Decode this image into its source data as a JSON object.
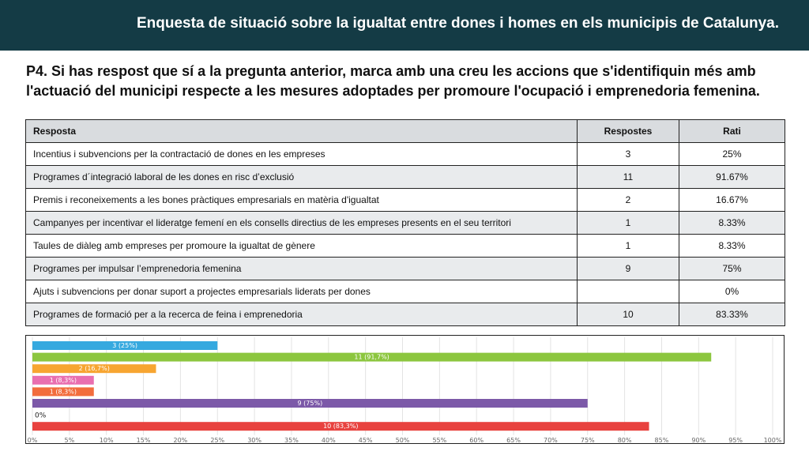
{
  "header": {
    "title": "Enquesta de situació sobre la  igualtat entre dones i homes en els municipis de Catalunya."
  },
  "question": {
    "line1": "P4.  Si has respost que sí a la pregunta anterior, marca amb una creu les accions que s'identifiquin més amb",
    "line2": "l'actuació del municipi respecte a les mesures adoptades per promoure l'ocupació i emprenedoria femenina."
  },
  "table": {
    "headers": [
      "Resposta",
      "Respostes",
      "Rati"
    ],
    "rows": [
      {
        "resposta": "Incentius i subvencions per la contractació de dones en les empreses",
        "respostes": "3",
        "rati": "25%"
      },
      {
        "resposta": "Programes d´integració laboral de les dones en risc d’exclusió",
        "respostes": "11",
        "rati": "91.67%"
      },
      {
        "resposta": "Premis i reconeixements a les bones pràctiques empresarials en matèria d'igualtat",
        "respostes": "2",
        "rati": "16.67%"
      },
      {
        "resposta": "Campanyes per incentivar el lideratge femení en els consells directius de les empreses presents en el seu territori",
        "respostes": "1",
        "rati": "8.33%"
      },
      {
        "resposta": "Taules de diàleg amb empreses per promoure la igualtat de gènere",
        "respostes": "1",
        "rati": "8.33%"
      },
      {
        "resposta": "Programes per impulsar l’emprenedoria femenina",
        "respostes": "9",
        "rati": "75%"
      },
      {
        "resposta": "Ajuts i subvencions per donar suport a projectes empresarials liderats per dones",
        "respostes": "",
        "rati": "0%"
      },
      {
        "resposta": "Programes de formació per a la recerca de feina i emprenedoria",
        "respostes": "10",
        "rati": "83.33%"
      }
    ]
  },
  "chart_data": {
    "type": "bar",
    "orientation": "horizontal",
    "values": [
      25,
      91.7,
      16.7,
      8.3,
      8.3,
      75,
      0,
      83.3
    ],
    "labels": [
      "3 (25%)",
      "11 (91,7%)",
      "2 (16,7%)",
      "1 (8,3%)",
      "1 (8,3%)",
      "9 (75%)",
      "0%",
      "10 (83,3%)"
    ],
    "colors": [
      "#36a9df",
      "#8cc63f",
      "#f7a531",
      "#e96fb0",
      "#f26d3d",
      "#7c59a8",
      "#999999",
      "#e8423f"
    ],
    "xlim": [
      0,
      100
    ],
    "xticks": [
      "0%",
      "5%",
      "10%",
      "15%",
      "20%",
      "25%",
      "30%",
      "35%",
      "40%",
      "45%",
      "50%",
      "55%",
      "60%",
      "65%",
      "70%",
      "75%",
      "80%",
      "85%",
      "90%",
      "95%",
      "100%"
    ],
    "grid": true
  }
}
